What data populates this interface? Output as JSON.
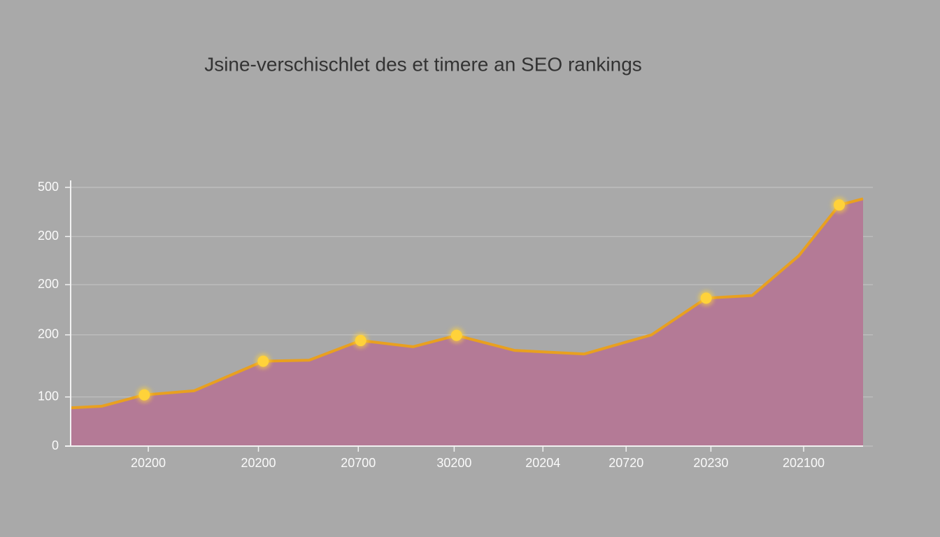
{
  "chart_data": {
    "type": "area",
    "title": "Jsine-verschischlet des et timere an SEO rankings",
    "x": [
      0,
      3.9,
      9.3,
      15.6,
      24.3,
      30.1,
      36.6,
      43.2,
      48.7,
      56.0,
      64.8,
      73.3,
      80.2,
      86.0,
      91.9,
      97.0,
      100
    ],
    "values": [
      74,
      77,
      99,
      107,
      164,
      166,
      204,
      192,
      214,
      185,
      178,
      215,
      286,
      291,
      368,
      466,
      478
    ],
    "marker_indices": [
      2,
      4,
      6,
      8,
      12,
      15
    ],
    "color": "#e8a020",
    "fill_color": "#b47a96",
    "marker_color": "#ffd23a",
    "xlim": [
      0,
      100
    ],
    "xticks": [
      {
        "value": 9.8,
        "label": "20200"
      },
      {
        "value": 23.7,
        "label": "20200"
      },
      {
        "value": 36.3,
        "label": "20700"
      },
      {
        "value": 48.4,
        "label": "30200"
      },
      {
        "value": 59.6,
        "label": "20204"
      },
      {
        "value": 70.1,
        "label": "20720"
      },
      {
        "value": 80.8,
        "label": "20230"
      },
      {
        "value": 92.5,
        "label": "202100"
      }
    ],
    "ylim": [
      0,
      500
    ],
    "yticks": [
      0,
      {
        "value": 95,
        "label": "100"
      },
      {
        "value": 215,
        "label": "200"
      },
      {
        "value": 312,
        "label": "200"
      },
      {
        "value": 405,
        "label": "200"
      },
      500
    ],
    "grid": true
  }
}
